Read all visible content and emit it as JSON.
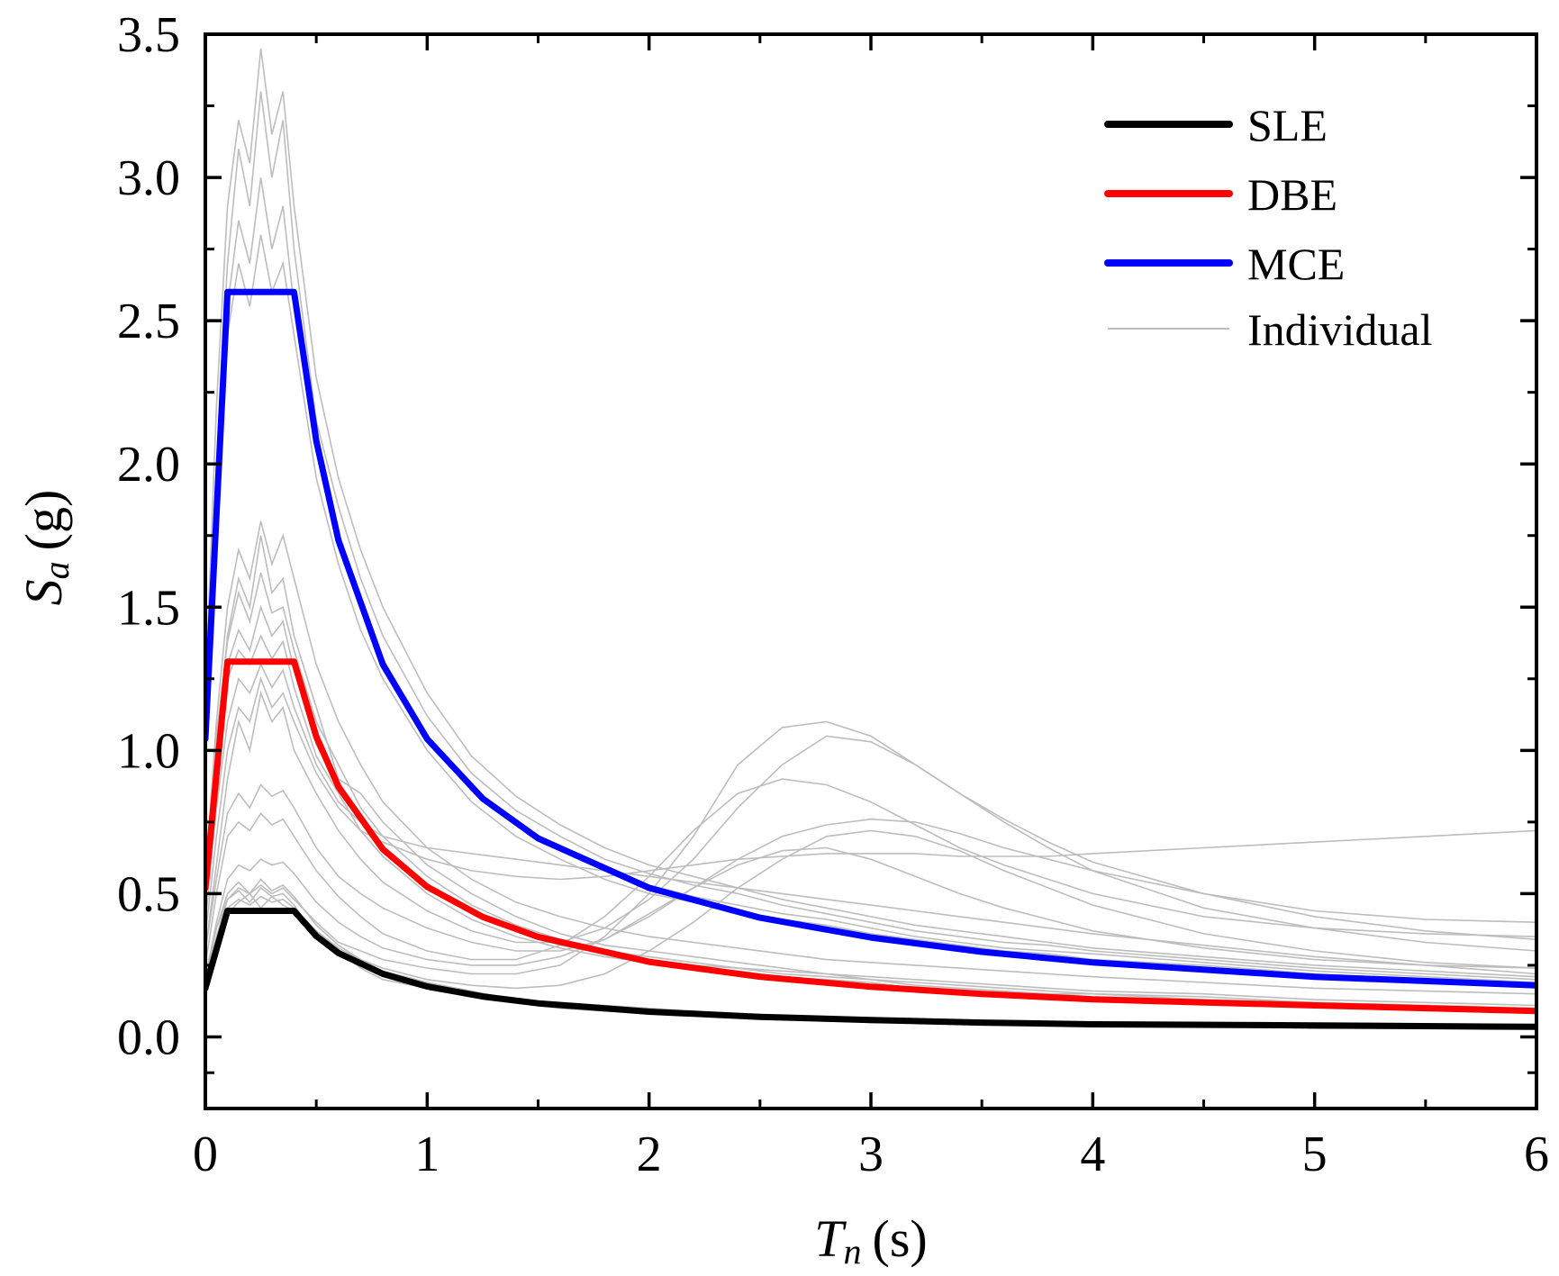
{
  "chart_data": {
    "type": "line",
    "title": "",
    "xlabel": {
      "symbol": "T",
      "subscript": "n",
      "unit": "(s)"
    },
    "ylabel": {
      "symbol": "S",
      "subscript": "a",
      "unit": "(g)"
    },
    "xlim": [
      0,
      6
    ],
    "ylim": [
      -0.25,
      3.5
    ],
    "xticks": [
      0,
      1,
      2,
      3,
      4,
      5,
      6
    ],
    "xtick_labels": [
      "0",
      "1",
      "2",
      "3",
      "4",
      "5",
      "6"
    ],
    "yticks": [
      0.0,
      0.5,
      1.0,
      1.5,
      2.0,
      2.5,
      3.0,
      3.5
    ],
    "ytick_labels": [
      "0.0",
      "0.5",
      "1.0",
      "1.5",
      "2.0",
      "2.5",
      "3.0",
      "3.5"
    ],
    "grid": false,
    "legend_position": "top-right",
    "series": [
      {
        "name": "SLE",
        "color": "#000000",
        "x": [
          0,
          0.1,
          0.4,
          0.5,
          0.6,
          0.8,
          1.0,
          1.25,
          1.5,
          2.0,
          2.5,
          3.0,
          3.5,
          4.0,
          5.0,
          6.0
        ],
        "y": [
          0.17,
          0.44,
          0.44,
          0.352,
          0.293,
          0.22,
          0.176,
          0.141,
          0.117,
          0.088,
          0.07,
          0.059,
          0.05,
          0.044,
          0.04,
          0.035
        ]
      },
      {
        "name": "DBE",
        "color": "#ff0000",
        "x": [
          0,
          0.1,
          0.4,
          0.5,
          0.6,
          0.8,
          1.0,
          1.25,
          1.5,
          2.0,
          2.5,
          3.0,
          3.5,
          4.0,
          5.0,
          6.0
        ],
        "y": [
          0.52,
          1.31,
          1.31,
          1.048,
          0.873,
          0.655,
          0.524,
          0.419,
          0.349,
          0.262,
          0.21,
          0.175,
          0.15,
          0.131,
          0.11,
          0.09
        ]
      },
      {
        "name": "MCE",
        "color": "#0000ff",
        "x": [
          0,
          0.1,
          0.4,
          0.5,
          0.6,
          0.8,
          1.0,
          1.25,
          1.5,
          2.0,
          2.5,
          3.0,
          3.5,
          4.0,
          5.0,
          6.0
        ],
        "y": [
          1.04,
          2.6,
          2.6,
          2.08,
          1.733,
          1.3,
          1.04,
          0.832,
          0.693,
          0.52,
          0.416,
          0.347,
          0.297,
          0.26,
          0.21,
          0.18
        ]
      }
    ],
    "individual": {
      "name": "Individual",
      "color": "#bdbdbd",
      "x": [
        0,
        0.05,
        0.1,
        0.15,
        0.2,
        0.25,
        0.3,
        0.35,
        0.4,
        0.5,
        0.6,
        0.7,
        0.8,
        1.0,
        1.2,
        1.4,
        1.6,
        1.8,
        2.0,
        2.2,
        2.4,
        2.6,
        2.8,
        3.0,
        3.2,
        3.4,
        3.6,
        3.8,
        4.0,
        4.5,
        5.0,
        5.5,
        6.0
      ],
      "records": [
        [
          0.2,
          0.35,
          0.48,
          0.51,
          0.47,
          0.52,
          0.49,
          0.5,
          0.46,
          0.35,
          0.29,
          0.25,
          0.22,
          0.18,
          0.15,
          0.13,
          0.11,
          0.1,
          0.09,
          0.08,
          0.07,
          0.07,
          0.06,
          0.06,
          0.05,
          0.05,
          0.05,
          0.04,
          0.04,
          0.04,
          0.03,
          0.03,
          0.03
        ],
        [
          0.17,
          0.3,
          0.43,
          0.47,
          0.5,
          0.45,
          0.49,
          0.46,
          0.44,
          0.37,
          0.3,
          0.24,
          0.2,
          0.17,
          0.14,
          0.12,
          0.1,
          0.09,
          0.09,
          0.08,
          0.07,
          0.06,
          0.06,
          0.05,
          0.05,
          0.05,
          0.04,
          0.04,
          0.04,
          0.04,
          0.03,
          0.03,
          0.03
        ],
        [
          0.22,
          0.38,
          0.5,
          0.54,
          0.5,
          0.55,
          0.51,
          0.53,
          0.49,
          0.39,
          0.32,
          0.27,
          0.23,
          0.19,
          0.16,
          0.13,
          0.12,
          0.11,
          0.1,
          0.09,
          0.08,
          0.07,
          0.07,
          0.06,
          0.06,
          0.05,
          0.05,
          0.05,
          0.05,
          0.04,
          0.04,
          0.04,
          0.04
        ],
        [
          0.5,
          0.95,
          1.3,
          1.42,
          1.35,
          1.5,
          1.4,
          1.45,
          1.28,
          1.02,
          0.88,
          0.75,
          0.66,
          0.53,
          0.43,
          0.37,
          0.32,
          0.29,
          0.27,
          0.25,
          0.24,
          0.22,
          0.21,
          0.2,
          0.18,
          0.17,
          0.16,
          0.15,
          0.15,
          0.13,
          0.12,
          0.11,
          0.1
        ],
        [
          0.55,
          1.05,
          1.38,
          1.55,
          1.45,
          1.62,
          1.48,
          1.5,
          1.35,
          1.1,
          0.95,
          0.8,
          0.7,
          0.56,
          0.46,
          0.39,
          0.34,
          0.3,
          0.28,
          0.26,
          0.24,
          0.23,
          0.22,
          0.2,
          0.19,
          0.18,
          0.17,
          0.16,
          0.15,
          0.14,
          0.12,
          0.11,
          0.1
        ],
        [
          0.45,
          0.9,
          1.25,
          1.35,
          1.3,
          1.4,
          1.32,
          1.38,
          1.22,
          0.98,
          0.85,
          0.72,
          0.63,
          0.5,
          0.41,
          0.35,
          0.31,
          0.28,
          0.26,
          0.24,
          0.23,
          0.21,
          0.2,
          0.19,
          0.17,
          0.16,
          0.15,
          0.15,
          0.14,
          0.13,
          0.11,
          0.1,
          0.09
        ],
        [
          0.6,
          1.0,
          1.4,
          1.6,
          1.5,
          1.75,
          1.55,
          1.6,
          1.4,
          1.15,
          0.9,
          0.85,
          0.75,
          0.6,
          0.5,
          0.42,
          0.36,
          0.32,
          0.3,
          0.28,
          0.26,
          0.24,
          0.22,
          0.21,
          0.2,
          0.19,
          0.18,
          0.17,
          0.16,
          0.15,
          0.13,
          0.12,
          0.11
        ],
        [
          1.05,
          1.9,
          2.55,
          2.85,
          2.7,
          3.0,
          2.75,
          2.9,
          2.55,
          2.05,
          1.75,
          1.5,
          1.32,
          1.05,
          0.86,
          0.74,
          0.65,
          0.58,
          0.53,
          0.49,
          0.46,
          0.43,
          0.41,
          0.38,
          0.35,
          0.33,
          0.31,
          0.3,
          0.29,
          0.26,
          0.23,
          0.21,
          0.19
        ],
        [
          1.1,
          2.0,
          2.7,
          3.1,
          2.9,
          3.3,
          3.0,
          3.2,
          2.75,
          2.15,
          1.85,
          1.6,
          1.4,
          1.12,
          0.92,
          0.79,
          0.7,
          0.62,
          0.57,
          0.53,
          0.5,
          0.46,
          0.43,
          0.4,
          0.37,
          0.35,
          0.33,
          0.32,
          0.3,
          0.27,
          0.24,
          0.22,
          0.2
        ],
        [
          0.95,
          1.8,
          2.45,
          2.7,
          2.55,
          2.8,
          2.6,
          2.7,
          2.45,
          1.95,
          1.65,
          1.42,
          1.25,
          1.0,
          0.82,
          0.7,
          0.62,
          0.55,
          0.5,
          0.47,
          0.44,
          0.41,
          0.39,
          0.36,
          0.34,
          0.32,
          0.3,
          0.29,
          0.27,
          0.25,
          0.22,
          0.2,
          0.18
        ],
        [
          1.2,
          2.2,
          2.9,
          3.2,
          3.05,
          3.45,
          3.15,
          3.3,
          2.9,
          2.3,
          1.95,
          1.7,
          1.5,
          1.2,
          0.98,
          0.84,
          0.74,
          0.66,
          0.6,
          0.56,
          0.52,
          0.48,
          0.45,
          0.42,
          0.39,
          0.37,
          0.35,
          0.33,
          0.31,
          0.28,
          0.25,
          0.23,
          0.21
        ],
        [
          0.2,
          0.38,
          0.48,
          0.52,
          0.5,
          0.53,
          0.5,
          0.52,
          0.48,
          0.4,
          0.33,
          0.3,
          0.27,
          0.24,
          0.22,
          0.22,
          0.25,
          0.35,
          0.5,
          0.7,
          0.95,
          1.08,
          1.1,
          1.05,
          0.95,
          0.85,
          0.75,
          0.66,
          0.58,
          0.45,
          0.38,
          0.33,
          0.3
        ],
        [
          0.3,
          0.6,
          0.9,
          1.1,
          1.0,
          1.2,
          1.1,
          1.15,
          1.0,
          0.85,
          0.72,
          0.62,
          0.54,
          0.44,
          0.37,
          0.33,
          0.33,
          0.38,
          0.48,
          0.62,
          0.8,
          0.95,
          1.05,
          1.03,
          0.95,
          0.85,
          0.76,
          0.68,
          0.61,
          0.5,
          0.42,
          0.37,
          0.34
        ],
        [
          0.25,
          0.5,
          0.7,
          0.75,
          0.72,
          0.78,
          0.74,
          0.76,
          0.7,
          0.58,
          0.49,
          0.42,
          0.36,
          0.3,
          0.27,
          0.27,
          0.32,
          0.42,
          0.56,
          0.72,
          0.85,
          0.9,
          0.88,
          0.82,
          0.74,
          0.66,
          0.6,
          0.55,
          0.5,
          0.42,
          0.38,
          0.36,
          0.35
        ],
        [
          0.2,
          0.4,
          0.55,
          0.6,
          0.58,
          0.62,
          0.6,
          0.61,
          0.57,
          0.47,
          0.4,
          0.35,
          0.31,
          0.27,
          0.25,
          0.25,
          0.28,
          0.34,
          0.43,
          0.52,
          0.62,
          0.7,
          0.74,
          0.76,
          0.75,
          0.71,
          0.66,
          0.62,
          0.58,
          0.5,
          0.44,
          0.41,
          0.4
        ],
        [
          0.35,
          0.7,
          1.0,
          1.15,
          1.1,
          1.25,
          1.15,
          1.2,
          1.1,
          0.92,
          0.8,
          0.72,
          0.68,
          0.62,
          0.58,
          0.56,
          0.55,
          0.56,
          0.58,
          0.6,
          0.62,
          0.63,
          0.64,
          0.64,
          0.64,
          0.63,
          0.63,
          0.63,
          0.64,
          0.66,
          0.68,
          0.7,
          0.72
        ],
        [
          0.18,
          0.32,
          0.45,
          0.48,
          0.46,
          0.49,
          0.47,
          0.48,
          0.45,
          0.37,
          0.31,
          0.27,
          0.24,
          0.2,
          0.18,
          0.17,
          0.18,
          0.22,
          0.3,
          0.4,
          0.52,
          0.62,
          0.7,
          0.72,
          0.7,
          0.65,
          0.58,
          0.52,
          0.46,
          0.36,
          0.3,
          0.26,
          0.24
        ],
        [
          0.4,
          0.8,
          1.1,
          1.25,
          1.2,
          1.3,
          1.22,
          1.28,
          1.15,
          0.95,
          0.82,
          0.75,
          0.7,
          0.66,
          0.64,
          0.62,
          0.6,
          0.58,
          0.56,
          0.54,
          0.52,
          0.5,
          0.48,
          0.46,
          0.44,
          0.42,
          0.4,
          0.38,
          0.36,
          0.32,
          0.28,
          0.25,
          0.22
        ],
        [
          0.3,
          0.55,
          0.78,
          0.85,
          0.8,
          0.88,
          0.84,
          0.86,
          0.8,
          0.66,
          0.56,
          0.5,
          0.45,
          0.38,
          0.33,
          0.3,
          0.3,
          0.34,
          0.42,
          0.52,
          0.6,
          0.65,
          0.66,
          0.62,
          0.56,
          0.5,
          0.45,
          0.41,
          0.37,
          0.31,
          0.27,
          0.25,
          0.24
        ],
        [
          0.55,
          1.1,
          1.5,
          1.7,
          1.6,
          1.8,
          1.65,
          1.75,
          1.6,
          1.3,
          1.1,
          0.95,
          0.82,
          0.66,
          0.55,
          0.47,
          0.42,
          0.38,
          0.35,
          0.33,
          0.31,
          0.29,
          0.27,
          0.26,
          0.25,
          0.24,
          0.23,
          0.22,
          0.21,
          0.19,
          0.17,
          0.16,
          0.15
        ]
      ]
    }
  },
  "legend": {
    "items": [
      {
        "label": "SLE",
        "color": "#000000"
      },
      {
        "label": "DBE",
        "color": "#ff0000"
      },
      {
        "label": "MCE",
        "color": "#0000ff"
      },
      {
        "label": "Individual",
        "color": "#bdbdbd"
      }
    ]
  }
}
